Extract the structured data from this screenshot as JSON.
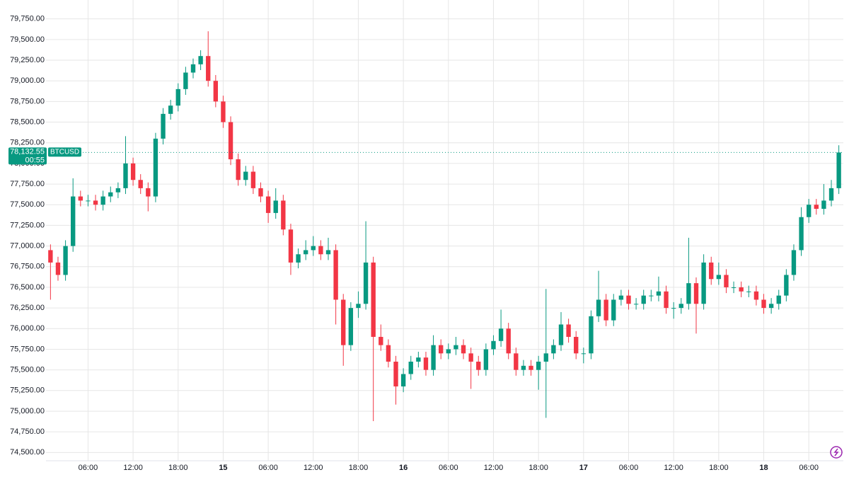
{
  "chart_data": {
    "type": "candlestick",
    "series": [
      {
        "name": "BTCUSD",
        "up_color": "#089981",
        "down_color": "#f23645",
        "x": [
          1,
          2,
          3,
          4,
          5,
          6,
          7,
          8,
          9,
          10,
          11,
          12,
          13,
          14,
          15,
          16,
          17,
          18,
          19,
          20,
          21,
          22,
          23,
          24,
          25,
          26,
          27,
          28,
          29,
          30,
          31,
          32,
          33,
          34,
          35,
          36,
          37,
          38,
          39,
          40,
          41,
          42,
          43,
          44,
          45,
          46,
          47,
          48,
          49,
          50,
          51,
          52,
          53,
          54,
          55,
          56,
          57,
          58,
          59,
          60,
          61,
          62,
          63,
          64,
          65,
          66,
          67,
          68,
          69,
          70,
          71,
          72,
          73,
          74,
          75,
          76,
          77,
          78,
          79,
          80,
          81,
          82,
          83,
          84,
          85,
          86,
          87,
          88,
          89,
          90,
          91,
          92,
          93,
          94,
          95,
          96,
          97,
          98,
          99,
          100,
          101,
          102,
          103,
          104,
          105,
          106
        ],
        "open": [
          76950,
          76800,
          76650,
          77000,
          77600,
          77550,
          77550,
          77500,
          77600,
          77650,
          77700,
          78000,
          77800,
          77700,
          77600,
          78300,
          78600,
          78700,
          78900,
          79100,
          79200,
          79300,
          79000,
          78750,
          78500,
          78050,
          77800,
          77900,
          77700,
          77600,
          77400,
          77550,
          77200,
          76800,
          76900,
          76950,
          77000,
          76900,
          76950,
          76350,
          75800,
          76250,
          76300,
          76800,
          75900,
          75800,
          75600,
          75300,
          75450,
          75600,
          75650,
          75500,
          75800,
          75700,
          75750,
          75800,
          75700,
          75600,
          75500,
          75750,
          75850,
          76000,
          75700,
          75500,
          75550,
          75500,
          75600,
          75700,
          75800,
          76050,
          75900,
          75700,
          75700,
          76150,
          76350,
          76100,
          76350,
          76400,
          76300,
          76300,
          76400,
          76400,
          76450,
          76250,
          76250,
          76300,
          76550,
          76300,
          76800,
          76600,
          76650,
          76500,
          76500,
          76450,
          76450,
          76350,
          76250,
          76300,
          76400,
          76650,
          76950,
          77350,
          77500,
          77450,
          77550,
          77700
        ],
        "high": [
          77020,
          76870,
          77070,
          77820,
          77670,
          77620,
          77620,
          77670,
          77720,
          77770,
          78330,
          78070,
          77870,
          77770,
          78370,
          78670,
          78770,
          78970,
          79170,
          79270,
          79370,
          79600,
          79070,
          78820,
          78570,
          78120,
          77970,
          77970,
          77770,
          77670,
          77700,
          77620,
          77270,
          76970,
          77070,
          77120,
          77070,
          77100,
          77020,
          76420,
          76320,
          76450,
          77300,
          76870,
          76050,
          75870,
          75670,
          75520,
          75670,
          75720,
          75720,
          75920,
          75870,
          75820,
          75900,
          75870,
          75770,
          75670,
          75820,
          75920,
          76230,
          76070,
          75770,
          75620,
          75620,
          75670,
          76480,
          75870,
          76200,
          76120,
          75970,
          75770,
          76220,
          76700,
          76420,
          76420,
          76470,
          76470,
          76370,
          76470,
          76470,
          76630,
          76520,
          76320,
          76370,
          77100,
          76620,
          76900,
          76870,
          76800,
          76720,
          76570,
          76570,
          76520,
          76520,
          76420,
          76370,
          76470,
          76720,
          77020,
          77470,
          77570,
          77570,
          77750,
          77800,
          78220
        ],
        "low": [
          76350,
          76580,
          76580,
          76930,
          77480,
          77480,
          77430,
          77430,
          77530,
          77580,
          77630,
          77730,
          77630,
          77420,
          77530,
          78230,
          78530,
          78630,
          78830,
          79030,
          79130,
          78930,
          78680,
          78430,
          77980,
          77730,
          77730,
          77630,
          77530,
          77280,
          77330,
          77130,
          76650,
          76730,
          76830,
          76880,
          76830,
          76830,
          76050,
          75550,
          75730,
          76130,
          76230,
          74880,
          75730,
          75530,
          75080,
          75230,
          75380,
          75530,
          75430,
          75430,
          75630,
          75630,
          75680,
          75630,
          75270,
          75430,
          75430,
          75680,
          75780,
          75630,
          75430,
          75430,
          75430,
          75260,
          74920,
          75630,
          75730,
          75830,
          75630,
          75580,
          75630,
          76080,
          76030,
          76030,
          76280,
          76230,
          76230,
          76230,
          76330,
          76330,
          76180,
          76120,
          76180,
          76230,
          75940,
          76230,
          76530,
          76530,
          76430,
          76430,
          76380,
          76380,
          76280,
          76180,
          76180,
          76230,
          76330,
          76580,
          76880,
          77280,
          77380,
          77380,
          77480,
          77630
        ],
        "close": [
          76800,
          76650,
          77000,
          77600,
          77550,
          77550,
          77500,
          77600,
          77650,
          77700,
          78000,
          77800,
          77700,
          77600,
          78300,
          78600,
          78700,
          78900,
          79100,
          79200,
          79300,
          79000,
          78750,
          78500,
          78050,
          77800,
          77900,
          77700,
          77600,
          77400,
          77550,
          77200,
          76800,
          76900,
          76950,
          77000,
          76900,
          76950,
          76350,
          75800,
          76250,
          76300,
          76800,
          75900,
          75800,
          75600,
          75300,
          75450,
          75600,
          75650,
          75500,
          75800,
          75700,
          75750,
          75800,
          75700,
          75600,
          75500,
          75750,
          75850,
          76000,
          75700,
          75500,
          75550,
          75500,
          75600,
          75700,
          75800,
          76050,
          75900,
          75700,
          75700,
          76150,
          76350,
          76100,
          76350,
          76400,
          76300,
          76300,
          76400,
          76400,
          76450,
          76250,
          76250,
          76300,
          76550,
          76300,
          76800,
          76600,
          76650,
          76500,
          76500,
          76450,
          76450,
          76350,
          76250,
          76300,
          76400,
          76650,
          76950,
          77350,
          77500,
          77450,
          77550,
          77700,
          78132.55
        ]
      }
    ],
    "last_price": 78132.55,
    "last_price_label": "78,132.55",
    "countdown": "00:55",
    "xlim": [
      0.4,
      106.6
    ],
    "ylim": [
      74400,
      79850
    ],
    "grid": true,
    "xticks": [
      {
        "value": 6,
        "label": "06:00"
      },
      {
        "value": 12,
        "label": "12:00"
      },
      {
        "value": 18,
        "label": "18:00"
      },
      {
        "value": 24,
        "label": "15"
      },
      {
        "value": 30,
        "label": "06:00"
      },
      {
        "value": 36,
        "label": "12:00"
      },
      {
        "value": 42,
        "label": "18:00"
      },
      {
        "value": 48,
        "label": "16"
      },
      {
        "value": 54,
        "label": "06:00"
      },
      {
        "value": 60,
        "label": "12:00"
      },
      {
        "value": 66,
        "label": "18:00"
      },
      {
        "value": 72,
        "label": "17"
      },
      {
        "value": 78,
        "label": "06:00"
      },
      {
        "value": 84,
        "label": "12:00"
      },
      {
        "value": 90,
        "label": "18:00"
      },
      {
        "value": 96,
        "label": "18"
      },
      {
        "value": 102,
        "label": "06:00"
      }
    ],
    "yticks": [
      {
        "value": 74500,
        "label": "74,500.00"
      },
      {
        "value": 74750,
        "label": "74,750.00"
      },
      {
        "value": 75000,
        "label": "75,000.00"
      },
      {
        "value": 75250,
        "label": "75,250.00"
      },
      {
        "value": 75500,
        "label": "75,500.00"
      },
      {
        "value": 75750,
        "label": "75,750.00"
      },
      {
        "value": 76000,
        "label": "76,000.00"
      },
      {
        "value": 76250,
        "label": "76,250.00"
      },
      {
        "value": 76500,
        "label": "76,500.00"
      },
      {
        "value": 76750,
        "label": "76,750.00"
      },
      {
        "value": 77000,
        "label": "77,000.00"
      },
      {
        "value": 77250,
        "label": "77,250.00"
      },
      {
        "value": 77500,
        "label": "77,500.00"
      },
      {
        "value": 77750,
        "label": "77,750.00"
      },
      {
        "value": 78000,
        "label": "78,000.00"
      },
      {
        "value": 78250,
        "label": "78,250.00"
      },
      {
        "value": 78500,
        "label": "78,500.00"
      },
      {
        "value": 78750,
        "label": "78,750.00"
      },
      {
        "value": 79000,
        "label": "79,000.00"
      },
      {
        "value": 79250,
        "label": "79,250.00"
      },
      {
        "value": 79500,
        "label": "79,500.00"
      },
      {
        "value": 79750,
        "label": "79,750.00"
      }
    ]
  }
}
